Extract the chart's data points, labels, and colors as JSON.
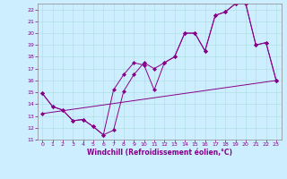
{
  "xlabel": "Windchill (Refroidissement éolien,°C)",
  "bg_color": "#cceeff",
  "grid_color": "#aadddd",
  "line_color": "#880088",
  "xlim": [
    -0.5,
    23.5
  ],
  "ylim": [
    11,
    22.5
  ],
  "xticks": [
    0,
    1,
    2,
    3,
    4,
    5,
    6,
    7,
    8,
    9,
    10,
    11,
    12,
    13,
    14,
    15,
    16,
    17,
    18,
    19,
    20,
    21,
    22,
    23
  ],
  "yticks": [
    11,
    12,
    13,
    14,
    15,
    16,
    17,
    18,
    19,
    20,
    21,
    22
  ],
  "line1_x": [
    0,
    1,
    2,
    3,
    4,
    5,
    6,
    7,
    8,
    9,
    10,
    11,
    12,
    13,
    14,
    15,
    16,
    17,
    18,
    19,
    20,
    21,
    22,
    23
  ],
  "line1_y": [
    14.9,
    13.8,
    13.5,
    12.6,
    12.7,
    12.1,
    11.4,
    11.8,
    15.1,
    16.5,
    17.5,
    17.0,
    17.5,
    18.0,
    20.0,
    20.0,
    18.5,
    21.5,
    21.8,
    22.5,
    22.5,
    19.0,
    19.2,
    16.0
  ],
  "line2_x": [
    0,
    1,
    2,
    3,
    4,
    5,
    6,
    7,
    8,
    9,
    10,
    11,
    12,
    13,
    14,
    15,
    16,
    17,
    18,
    19,
    20,
    21,
    22,
    23
  ],
  "line2_y": [
    14.9,
    13.8,
    13.5,
    12.6,
    12.7,
    12.1,
    11.4,
    15.2,
    16.5,
    17.5,
    17.3,
    15.2,
    17.5,
    18.0,
    20.0,
    20.0,
    18.5,
    21.5,
    21.8,
    22.5,
    22.5,
    19.0,
    19.2,
    16.0
  ],
  "line3_x": [
    0,
    23
  ],
  "line3_y": [
    13.2,
    16.0
  ],
  "xlabel_fontsize": 5.5,
  "tick_fontsize": 4.5
}
